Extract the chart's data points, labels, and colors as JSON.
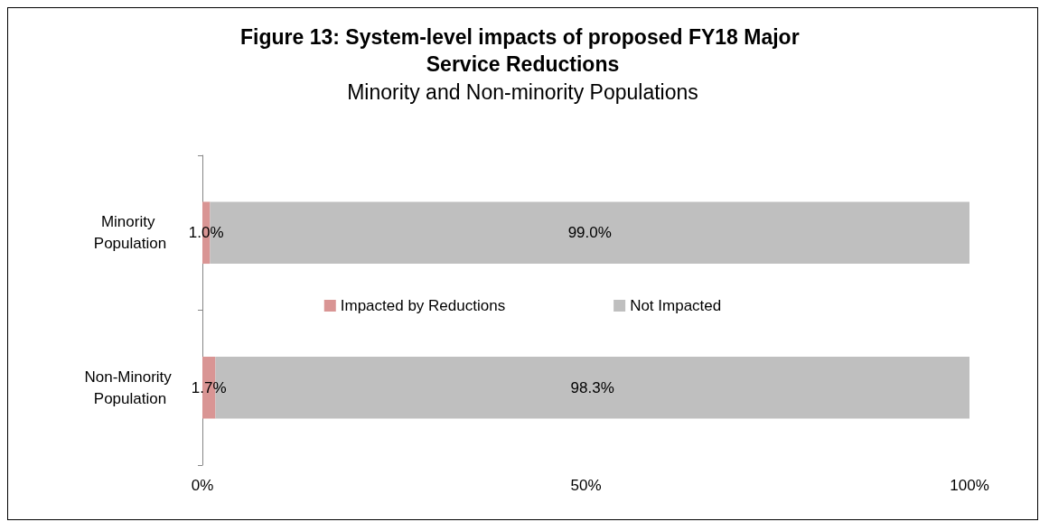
{
  "chart_data": {
    "type": "bar",
    "orientation": "horizontal",
    "stacked": true,
    "title": "Figure 13: System-level impacts of proposed FY18 Major Service Reductions",
    "subtitle": "Minority and Non-minority Populations",
    "categories": [
      "Minority Population",
      "Non-Minority Population"
    ],
    "series": [
      {
        "name": "Impacted by Reductions",
        "color": "#d99594",
        "values": [
          1.0,
          1.7
        ],
        "value_labels": [
          "1.0%",
          "1.7%"
        ]
      },
      {
        "name": "Not Impacted",
        "color": "#bfbfbf",
        "values": [
          99.0,
          98.3
        ],
        "value_labels": [
          "99.0%",
          "98.3%"
        ]
      }
    ],
    "xlim": [
      0,
      100
    ],
    "xticks": [
      {
        "value": 0,
        "label": "0%"
      },
      {
        "value": 50,
        "label": "50%"
      },
      {
        "value": 100,
        "label": "100%"
      }
    ],
    "grid": false,
    "legend": "center"
  }
}
